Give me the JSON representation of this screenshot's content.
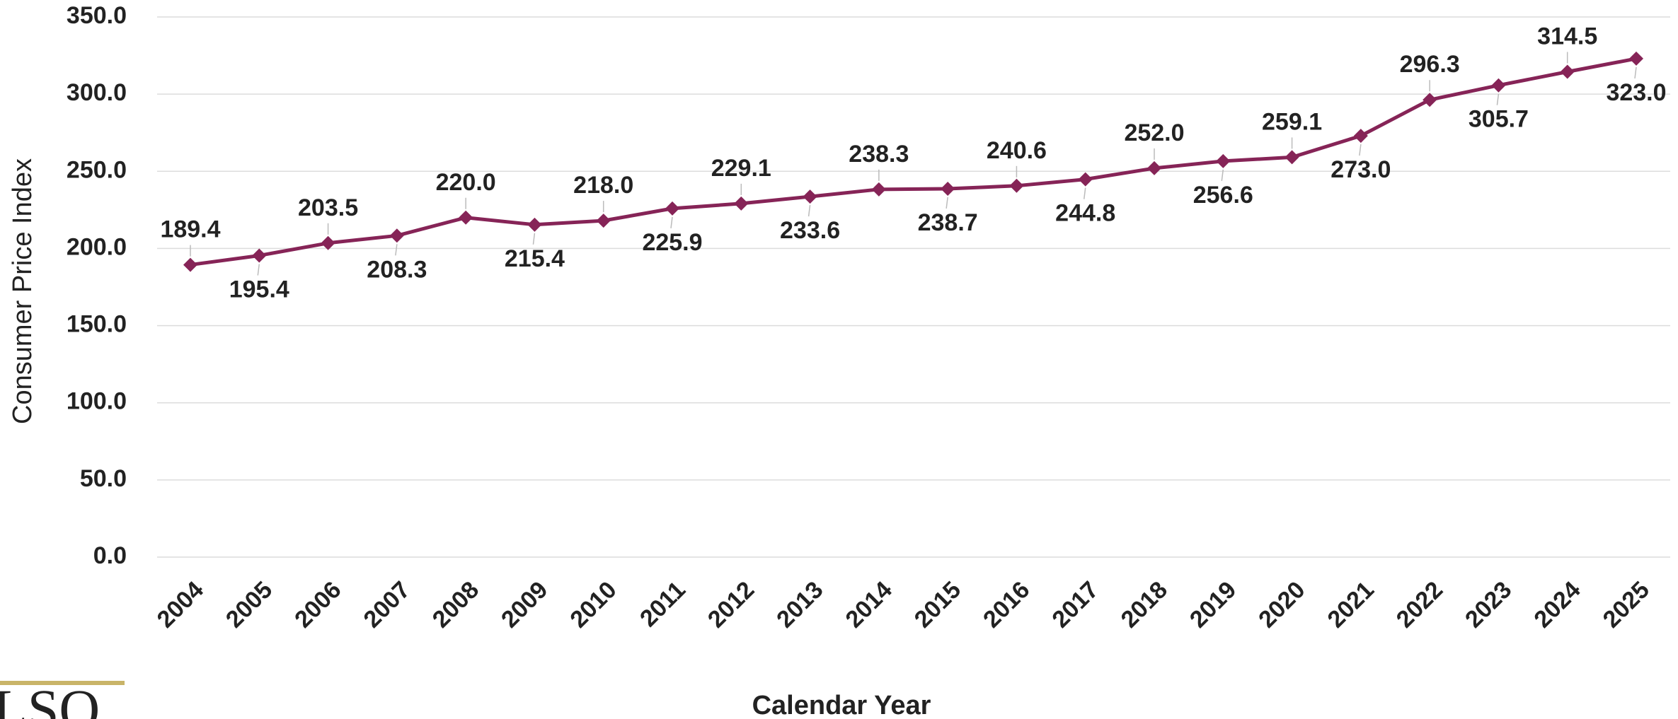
{
  "chart_data": {
    "type": "line",
    "x_label": "Calendar Year",
    "y_label": "Consumer Price Index",
    "categories": [
      "2004",
      "2005",
      "2006",
      "2007",
      "2008",
      "2009",
      "2010",
      "2011",
      "2012",
      "2013",
      "2014",
      "2015",
      "2016",
      "2017",
      "2018",
      "2019",
      "2020",
      "2021",
      "2022",
      "2023",
      "2024",
      "2025"
    ],
    "series": [
      {
        "color": "#862457",
        "values": [
          189.4,
          195.4,
          203.5,
          208.3,
          220.0,
          215.4,
          218.0,
          225.9,
          229.1,
          233.6,
          238.3,
          238.7,
          240.6,
          244.8,
          252.0,
          256.6,
          259.1,
          273.0,
          296.3,
          305.7,
          314.5,
          323.0
        ],
        "value_labels": [
          "189.4",
          "195.4",
          "203.5",
          "208.3",
          "220.0",
          "215.4",
          "218.0",
          "225.9",
          "229.1",
          "233.6",
          "238.3",
          "238.7",
          "240.6",
          "244.8",
          "252.0",
          "256.6",
          "259.1",
          "273.0",
          "296.3",
          "305.7",
          "314.5",
          "323.0"
        ]
      }
    ],
    "ylim": [
      0,
      350
    ],
    "yticks": [
      {
        "value": 0,
        "label": "0.0"
      },
      {
        "value": 50,
        "label": "50.0"
      },
      {
        "value": 100,
        "label": "100.0"
      },
      {
        "value": 150,
        "label": "150.0"
      },
      {
        "value": 200,
        "label": "200.0"
      },
      {
        "value": 250,
        "label": "250.0"
      },
      {
        "value": 300,
        "label": "300.0"
      },
      {
        "value": 350,
        "label": "350.0"
      }
    ],
    "grid": true,
    "logo": "LSO"
  }
}
